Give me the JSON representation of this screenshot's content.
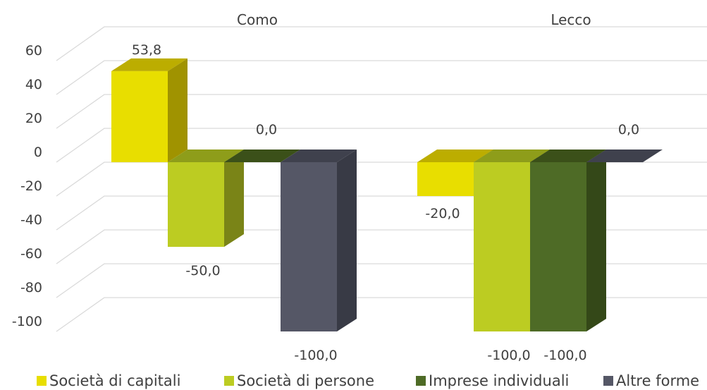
{
  "chart_data": {
    "type": "bar",
    "style": "3d-clustered-column",
    "categories": [
      "Como",
      "Lecco"
    ],
    "series": [
      {
        "name": "Società di capitali",
        "values": [
          53.8,
          -20.0
        ],
        "color": "#e8de00",
        "top_color": "#bcad00",
        "side_color": "#a09300"
      },
      {
        "name": "Società di persone",
        "values": [
          -50.0,
          -100.0
        ],
        "color": "#bccc22",
        "top_color": "#8e9d1a",
        "side_color": "#7a8417"
      },
      {
        "name": "Imprese individuali",
        "values": [
          0.0,
          -100.0
        ],
        "color": "#4e6b26",
        "top_color": "#3b5019",
        "side_color": "#344818"
      },
      {
        "name": "Altre forme",
        "values": [
          -100.0,
          0.0
        ],
        "color": "#555766",
        "top_color": "#3f414d",
        "side_color": "#383a45"
      }
    ],
    "data_labels": [
      [
        "53,8",
        "-20,0"
      ],
      [
        "-50,0",
        "-100,0"
      ],
      [
        "0,0",
        "-100,0"
      ],
      [
        "-100,0",
        "0,0"
      ]
    ],
    "y_ticks": [
      "60",
      "40",
      "20",
      "0",
      "-20",
      "-40",
      "-60",
      "-80",
      "-100"
    ],
    "y_tick_values": [
      60,
      40,
      20,
      0,
      -20,
      -40,
      -60,
      -80,
      -100
    ],
    "ylim": [
      -100,
      60
    ],
    "grid": true,
    "legend_position": "bottom",
    "category_label_position": "top"
  }
}
